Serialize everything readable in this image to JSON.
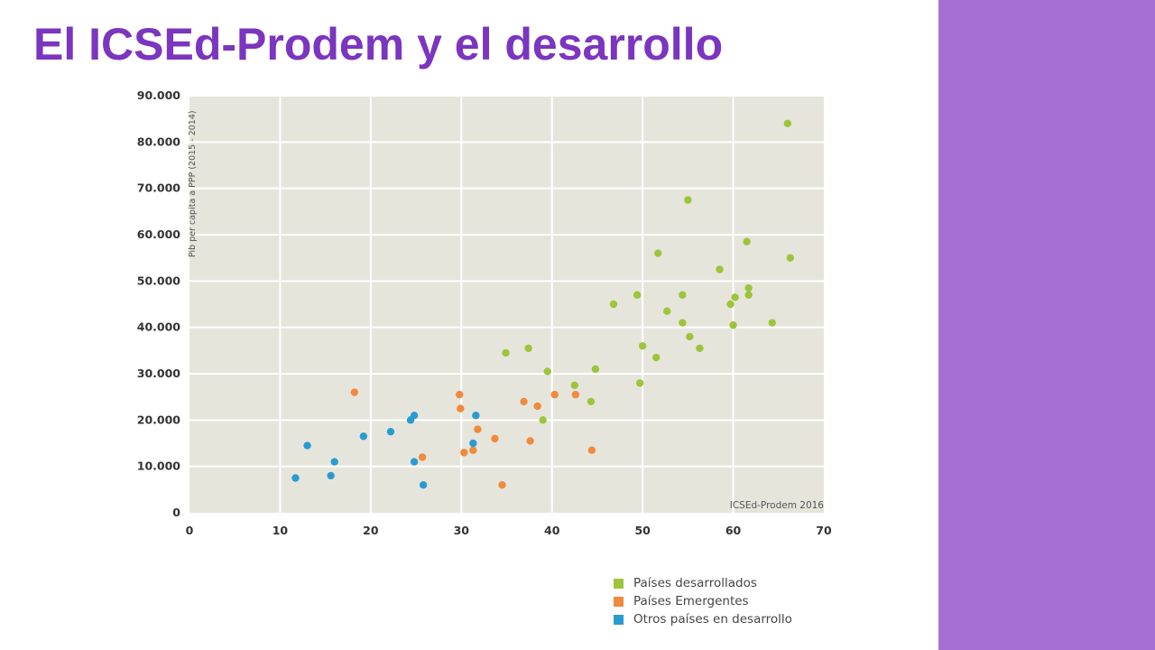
{
  "slide": {
    "title": "El ICSEd-Prodem y el desarrollo",
    "title_color": "#7b35bf",
    "side_panel_color": "#a66fd4"
  },
  "chart_data": {
    "type": "scatter",
    "ylabel": "Pib per capita a PPP (2015 - 2014)",
    "xlabel": "",
    "xlim": [
      0,
      70
    ],
    "ylim": [
      0,
      90000
    ],
    "x_ticks": [
      "0",
      "10",
      "20",
      "30",
      "40",
      "50",
      "60",
      "70"
    ],
    "y_ticks": [
      "0",
      "10.000",
      "20.000",
      "30.000",
      "40.000",
      "50.000",
      "60.000",
      "70.000",
      "80.000",
      "90.000"
    ],
    "grid": true,
    "background": "#e6e5dc",
    "annotation": "ICSEd-Prodem 2016",
    "legend_position": "bottom-right",
    "series": [
      {
        "name": "Países desarrollados",
        "color": "#9cc53b",
        "points": [
          [
            66.0,
            84000
          ],
          [
            55.0,
            67500
          ],
          [
            61.5,
            58500
          ],
          [
            51.7,
            56000
          ],
          [
            66.3,
            55000
          ],
          [
            58.5,
            52500
          ],
          [
            49.4,
            47000
          ],
          [
            54.4,
            47000
          ],
          [
            61.7,
            48500
          ],
          [
            61.7,
            47000
          ],
          [
            60.2,
            46500
          ],
          [
            59.7,
            45000
          ],
          [
            46.8,
            45000
          ],
          [
            52.7,
            43500
          ],
          [
            54.4,
            41000
          ],
          [
            64.3,
            41000
          ],
          [
            60.0,
            40500
          ],
          [
            55.2,
            38000
          ],
          [
            56.3,
            35500
          ],
          [
            50.0,
            36000
          ],
          [
            51.5,
            33500
          ],
          [
            37.4,
            35500
          ],
          [
            34.9,
            34500
          ],
          [
            39.5,
            30500
          ],
          [
            44.8,
            31000
          ],
          [
            49.7,
            28000
          ],
          [
            42.5,
            27500
          ],
          [
            44.3,
            24000
          ],
          [
            39.0,
            20000
          ]
        ]
      },
      {
        "name": "Países Emergentes",
        "color": "#f08a3e",
        "points": [
          [
            18.2,
            26000
          ],
          [
            29.8,
            25500
          ],
          [
            40.3,
            25500
          ],
          [
            42.6,
            25500
          ],
          [
            36.9,
            24000
          ],
          [
            38.4,
            23000
          ],
          [
            29.9,
            22500
          ],
          [
            31.8,
            18000
          ],
          [
            33.7,
            16000
          ],
          [
            37.6,
            15500
          ],
          [
            31.3,
            13500
          ],
          [
            44.4,
            13500
          ],
          [
            30.3,
            13000
          ],
          [
            25.7,
            12000
          ],
          [
            34.5,
            6000
          ]
        ]
      },
      {
        "name": "Otros países en desarrollo",
        "color": "#2a9bd1",
        "points": [
          [
            24.8,
            21000
          ],
          [
            31.6,
            21000
          ],
          [
            24.4,
            20000
          ],
          [
            22.2,
            17500
          ],
          [
            19.2,
            16500
          ],
          [
            31.3,
            15000
          ],
          [
            13.0,
            14500
          ],
          [
            16.0,
            11000
          ],
          [
            24.8,
            11000
          ],
          [
            15.6,
            8000
          ],
          [
            11.7,
            7500
          ],
          [
            25.8,
            6000
          ]
        ]
      }
    ]
  }
}
